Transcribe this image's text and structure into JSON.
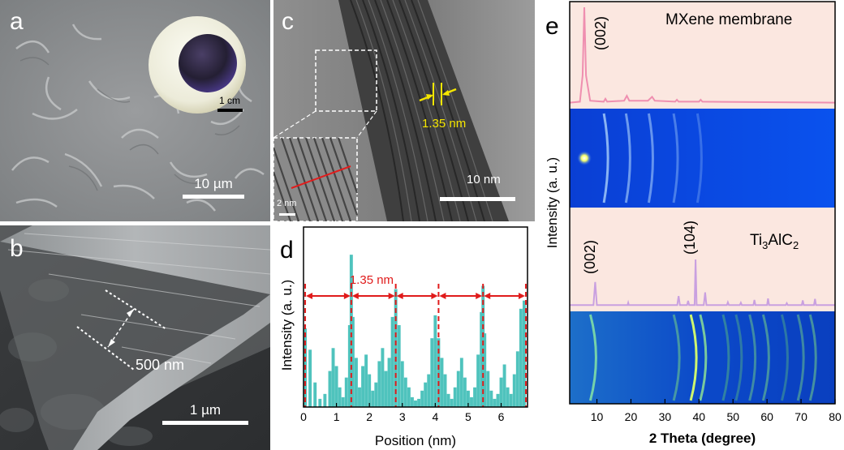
{
  "panels": {
    "a": {
      "label": "a",
      "scale_bar": "10 µm",
      "inset_scale_bar": "1 cm"
    },
    "b": {
      "label": "b",
      "thickness_label": "500 nm",
      "scale_bar": "1 µm"
    },
    "c": {
      "label": "c",
      "spacing_label": "1.35 nm",
      "scale_bar": "10 nm",
      "inset_scale_bar": "2 nm"
    },
    "d": {
      "label": "d",
      "spacing_label": "1.35 nm"
    },
    "e": {
      "label": "e",
      "top_title": "MXene membrane",
      "top_peak_label": "(002)",
      "bottom_title_main": "Ti",
      "bottom_title_sub1": "3",
      "bottom_title_mid": "AlC",
      "bottom_title_sub2": "2",
      "bottom_peak_labels": [
        "(002)",
        "(104)"
      ]
    }
  },
  "chart_data": [
    {
      "type": "bar",
      "panel": "d",
      "xlabel": "Position (nm)",
      "ylabel": "Intensity (a. u.)",
      "xlim": [
        0,
        6.8
      ],
      "ylim": [
        0,
        1
      ],
      "xticks": [
        0,
        1,
        2,
        3,
        4,
        5,
        6
      ],
      "peak_markers_x": [
        0.05,
        1.45,
        2.8,
        4.1,
        5.45,
        6.75
      ],
      "x": [
        0.05,
        0.2,
        0.35,
        0.5,
        0.65,
        0.8,
        0.9,
        1.0,
        1.1,
        1.2,
        1.3,
        1.4,
        1.45,
        1.5,
        1.6,
        1.7,
        1.8,
        1.9,
        2.0,
        2.1,
        2.2,
        2.3,
        2.4,
        2.5,
        2.6,
        2.7,
        2.8,
        2.9,
        3.0,
        3.1,
        3.2,
        3.3,
        3.4,
        3.5,
        3.6,
        3.7,
        3.8,
        3.9,
        4.0,
        4.1,
        4.2,
        4.3,
        4.4,
        4.5,
        4.6,
        4.7,
        4.8,
        4.9,
        5.0,
        5.1,
        5.2,
        5.3,
        5.4,
        5.45,
        5.5,
        5.6,
        5.7,
        5.8,
        5.9,
        6.0,
        6.1,
        6.2,
        6.3,
        6.4,
        6.5,
        6.6,
        6.7
      ],
      "values": [
        0.48,
        0.35,
        0.15,
        0.05,
        0.08,
        0.22,
        0.36,
        0.25,
        0.12,
        0.06,
        0.18,
        0.5,
        0.93,
        0.55,
        0.3,
        0.12,
        0.25,
        0.32,
        0.2,
        0.1,
        0.15,
        0.28,
        0.36,
        0.22,
        0.3,
        0.55,
        0.72,
        0.5,
        0.28,
        0.18,
        0.12,
        0.06,
        0.04,
        0.05,
        0.1,
        0.15,
        0.2,
        0.42,
        0.56,
        0.42,
        0.3,
        0.2,
        0.08,
        0.05,
        0.12,
        0.22,
        0.3,
        0.18,
        0.1,
        0.06,
        0.12,
        0.32,
        0.58,
        0.74,
        0.45,
        0.22,
        0.1,
        0.05,
        0.08,
        0.18,
        0.26,
        0.12,
        0.08,
        0.2,
        0.34,
        0.6,
        0.65
      ]
    },
    {
      "type": "line",
      "panel": "e-top",
      "title": "MXene membrane",
      "xlim": [
        2,
        80
      ],
      "ylim": [
        0,
        1
      ],
      "x": [
        2,
        5,
        5.8,
        6.3,
        6.8,
        8,
        12,
        12.5,
        13,
        18,
        18.8,
        19.5,
        25,
        26.2,
        27,
        33,
        33.5,
        34,
        40,
        40.5,
        41,
        80
      ],
      "values": [
        0.02,
        0.03,
        0.3,
        1.0,
        0.3,
        0.04,
        0.03,
        0.06,
        0.03,
        0.04,
        0.09,
        0.04,
        0.04,
        0.08,
        0.04,
        0.03,
        0.05,
        0.03,
        0.03,
        0.05,
        0.03,
        0.02
      ]
    },
    {
      "type": "line",
      "panel": "e-bottom",
      "title": "Ti3AlC2",
      "xlim": [
        2,
        80
      ],
      "ylim": [
        0,
        1
      ],
      "x": [
        2,
        9,
        9.5,
        10,
        19,
        19.2,
        19.4,
        33.6,
        34,
        34.4,
        36.5,
        36.8,
        37.1,
        38.7,
        39,
        39.3,
        41.4,
        41.8,
        42.2,
        44,
        48.2,
        48.5,
        48.8,
        52,
        52.3,
        52.6,
        56,
        56.3,
        56.6,
        60,
        60.3,
        60.6,
        65.5,
        65.8,
        66.1,
        70.2,
        70.5,
        70.8,
        73.8,
        74.1,
        74.4,
        80
      ],
      "values": [
        0.03,
        0.03,
        0.52,
        0.03,
        0.03,
        0.08,
        0.03,
        0.03,
        0.22,
        0.03,
        0.03,
        0.12,
        0.03,
        0.03,
        1.0,
        0.03,
        0.03,
        0.3,
        0.03,
        0.03,
        0.03,
        0.09,
        0.03,
        0.03,
        0.08,
        0.03,
        0.03,
        0.14,
        0.03,
        0.03,
        0.17,
        0.03,
        0.03,
        0.07,
        0.03,
        0.03,
        0.13,
        0.03,
        0.03,
        0.16,
        0.03,
        0.03
      ]
    },
    {
      "type": "other",
      "panel": "e-axes",
      "xlabel": "2 Theta (degree)",
      "ylabel": "Intensity (a. u.)",
      "xlim": [
        2,
        80
      ],
      "xticks": [
        10,
        20,
        30,
        40,
        50,
        60,
        70,
        80
      ]
    }
  ]
}
